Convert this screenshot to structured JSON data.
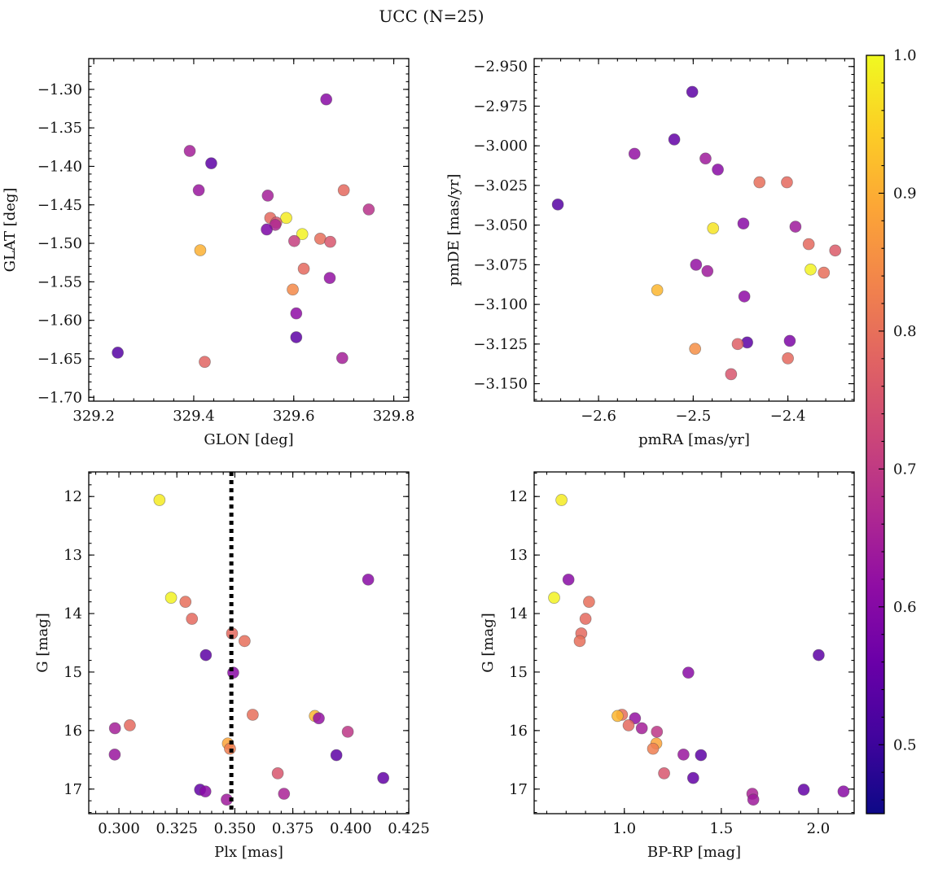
{
  "figure": {
    "title": "UCC (N=25)"
  },
  "colorbar": {
    "range": [
      0.45,
      1.0
    ],
    "ticks": [
      0.5,
      0.6,
      0.7,
      0.8,
      0.9,
      1.0
    ],
    "tick_labels": [
      "0.5",
      "0.6",
      "0.7",
      "0.8",
      "0.9",
      "1.0"
    ],
    "colormap": "plasma"
  },
  "chart_data": [
    {
      "id": "glon_glat",
      "type": "scatter",
      "xlabel": "GLON [deg]",
      "ylabel": "GLAT [deg]",
      "xlim": [
        329.19,
        329.83
      ],
      "ylim": [
        -1.705,
        -1.26
      ],
      "y_inverted": false,
      "xticks": [
        329.2,
        329.4,
        329.6,
        329.8
      ],
      "xtick_labels": [
        "329.2",
        "329.4",
        "329.6",
        "329.8"
      ],
      "yticks": [
        -1.3,
        -1.35,
        -1.4,
        -1.45,
        -1.5,
        -1.55,
        -1.6,
        -1.65,
        -1.7
      ],
      "ytick_labels": [
        "−1.30",
        "−1.35",
        "−1.40",
        "−1.45",
        "−1.50",
        "−1.55",
        "−1.60",
        "−1.65",
        "−1.70"
      ],
      "points": [
        {
          "x": 329.665,
          "y": -1.313,
          "c": 0.55
        },
        {
          "x": 329.392,
          "y": -1.38,
          "c": 0.6
        },
        {
          "x": 329.435,
          "y": -1.396,
          "c": 0.48
        },
        {
          "x": 329.41,
          "y": -1.431,
          "c": 0.58
        },
        {
          "x": 329.548,
          "y": -1.438,
          "c": 0.6
        },
        {
          "x": 329.7,
          "y": -1.431,
          "c": 0.76
        },
        {
          "x": 329.75,
          "y": -1.456,
          "c": 0.64
        },
        {
          "x": 329.553,
          "y": -1.467,
          "c": 0.76
        },
        {
          "x": 329.585,
          "y": -1.467,
          "c": 0.98
        },
        {
          "x": 329.565,
          "y": -1.473,
          "c": 0.72
        },
        {
          "x": 329.563,
          "y": -1.476,
          "c": 0.62
        },
        {
          "x": 329.546,
          "y": -1.482,
          "c": 0.53
        },
        {
          "x": 329.617,
          "y": -1.488,
          "c": 0.99
        },
        {
          "x": 329.653,
          "y": -1.494,
          "c": 0.77
        },
        {
          "x": 329.601,
          "y": -1.497,
          "c": 0.67
        },
        {
          "x": 329.673,
          "y": -1.498,
          "c": 0.72
        },
        {
          "x": 329.413,
          "y": -1.509,
          "c": 0.89
        },
        {
          "x": 329.62,
          "y": -1.533,
          "c": 0.76
        },
        {
          "x": 329.672,
          "y": -1.545,
          "c": 0.57
        },
        {
          "x": 329.598,
          "y": -1.56,
          "c": 0.82
        },
        {
          "x": 329.605,
          "y": -1.591,
          "c": 0.56
        },
        {
          "x": 329.605,
          "y": -1.622,
          "c": 0.48
        },
        {
          "x": 329.248,
          "y": -1.642,
          "c": 0.47
        },
        {
          "x": 329.697,
          "y": -1.649,
          "c": 0.6
        },
        {
          "x": 329.422,
          "y": -1.654,
          "c": 0.75
        }
      ]
    },
    {
      "id": "pmra_pmde",
      "type": "scatter",
      "xlabel": "pmRA [mas/yr]",
      "ylabel": "pmDE [mas/yr]",
      "xlim": [
        -2.668,
        -2.33
      ],
      "ylim": [
        -3.161,
        -2.945
      ],
      "y_inverted": false,
      "xticks": [
        -2.6,
        -2.5,
        -2.4
      ],
      "xtick_labels": [
        "−2.6",
        "−2.5",
        "−2.4"
      ],
      "yticks": [
        -2.95,
        -2.975,
        -3.0,
        -3.025,
        -3.05,
        -3.075,
        -3.1,
        -3.125,
        -3.15
      ],
      "ytick_labels": [
        "−2.950",
        "−2.975",
        "−3.000",
        "−3.025",
        "−3.050",
        "−3.075",
        "−3.100",
        "−3.125",
        "−3.150"
      ],
      "points": [
        {
          "x": -2.501,
          "y": -2.966,
          "c": 0.48
        },
        {
          "x": -2.52,
          "y": -2.996,
          "c": 0.49
        },
        {
          "x": -2.562,
          "y": -3.005,
          "c": 0.57
        },
        {
          "x": -2.487,
          "y": -3.008,
          "c": 0.59
        },
        {
          "x": -2.474,
          "y": -3.015,
          "c": 0.55
        },
        {
          "x": -2.43,
          "y": -3.023,
          "c": 0.77
        },
        {
          "x": -2.401,
          "y": -3.023,
          "c": 0.76
        },
        {
          "x": -2.643,
          "y": -3.037,
          "c": 0.47
        },
        {
          "x": -2.447,
          "y": -3.049,
          "c": 0.55
        },
        {
          "x": -2.392,
          "y": -3.051,
          "c": 0.59
        },
        {
          "x": -2.479,
          "y": -3.052,
          "c": 0.97
        },
        {
          "x": -2.378,
          "y": -3.062,
          "c": 0.76
        },
        {
          "x": -2.35,
          "y": -3.066,
          "c": 0.73
        },
        {
          "x": -2.497,
          "y": -3.075,
          "c": 0.57
        },
        {
          "x": -2.376,
          "y": -3.078,
          "c": 0.99
        },
        {
          "x": -2.485,
          "y": -3.079,
          "c": 0.59
        },
        {
          "x": -2.362,
          "y": -3.08,
          "c": 0.77
        },
        {
          "x": -2.538,
          "y": -3.091,
          "c": 0.9
        },
        {
          "x": -2.446,
          "y": -3.095,
          "c": 0.56
        },
        {
          "x": -2.398,
          "y": -3.123,
          "c": 0.53
        },
        {
          "x": -2.443,
          "y": -3.124,
          "c": 0.48
        },
        {
          "x": -2.453,
          "y": -3.125,
          "c": 0.74
        },
        {
          "x": -2.498,
          "y": -3.128,
          "c": 0.83
        },
        {
          "x": -2.4,
          "y": -3.134,
          "c": 0.76
        },
        {
          "x": -2.46,
          "y": -3.144,
          "c": 0.72
        }
      ]
    },
    {
      "id": "plx_g",
      "type": "scatter",
      "xlabel": "Plx [mas]",
      "ylabel": "G [mag]",
      "xlim": [
        0.287,
        0.425
      ],
      "ylim": [
        11.58,
        17.42
      ],
      "y_inverted": true,
      "xticks": [
        0.3,
        0.325,
        0.35,
        0.375,
        0.4,
        0.425
      ],
      "xtick_labels": [
        "0.300",
        "0.325",
        "0.350",
        "0.375",
        "0.400",
        "0.425"
      ],
      "yticks": [
        12,
        13,
        14,
        15,
        16,
        17
      ],
      "ytick_labels": [
        "12",
        "13",
        "14",
        "15",
        "16",
        "17"
      ],
      "vline": {
        "x": 0.3485
      },
      "points": [
        {
          "x": 0.3175,
          "y": 12.06,
          "c": 0.98
        },
        {
          "x": 0.4075,
          "y": 13.42,
          "c": 0.55
        },
        {
          "x": 0.3225,
          "y": 13.73,
          "c": 0.99
        },
        {
          "x": 0.3287,
          "y": 13.8,
          "c": 0.77
        },
        {
          "x": 0.3315,
          "y": 14.09,
          "c": 0.76
        },
        {
          "x": 0.3488,
          "y": 14.34,
          "c": 0.76
        },
        {
          "x": 0.3542,
          "y": 14.47,
          "c": 0.77
        },
        {
          "x": 0.3375,
          "y": 14.71,
          "c": 0.48
        },
        {
          "x": 0.3493,
          "y": 15.01,
          "c": 0.55
        },
        {
          "x": 0.3577,
          "y": 15.73,
          "c": 0.77
        },
        {
          "x": 0.3845,
          "y": 15.75,
          "c": 0.9
        },
        {
          "x": 0.3862,
          "y": 15.79,
          "c": 0.57
        },
        {
          "x": 0.3047,
          "y": 15.91,
          "c": 0.76
        },
        {
          "x": 0.2983,
          "y": 15.96,
          "c": 0.6
        },
        {
          "x": 0.3987,
          "y": 16.02,
          "c": 0.65
        },
        {
          "x": 0.347,
          "y": 16.22,
          "c": 0.87
        },
        {
          "x": 0.3479,
          "y": 16.31,
          "c": 0.8
        },
        {
          "x": 0.2982,
          "y": 16.41,
          "c": 0.58
        },
        {
          "x": 0.3938,
          "y": 16.42,
          "c": 0.48
        },
        {
          "x": 0.3685,
          "y": 16.73,
          "c": 0.72
        },
        {
          "x": 0.414,
          "y": 16.81,
          "c": 0.49
        },
        {
          "x": 0.335,
          "y": 17.01,
          "c": 0.49
        },
        {
          "x": 0.3373,
          "y": 17.04,
          "c": 0.55
        },
        {
          "x": 0.3712,
          "y": 17.08,
          "c": 0.61
        },
        {
          "x": 0.3465,
          "y": 17.18,
          "c": 0.59
        }
      ]
    },
    {
      "id": "bprp_g",
      "type": "scatter",
      "xlabel": "BP-RP [mag]",
      "ylabel": "G [mag]",
      "xlim": [
        0.535,
        2.185
      ],
      "ylim": [
        11.58,
        17.42
      ],
      "y_inverted": true,
      "xticks": [
        1.0,
        1.5,
        2.0
      ],
      "xtick_labels": [
        "1.0",
        "1.5",
        "2.0"
      ],
      "yticks": [
        12,
        13,
        14,
        15,
        16,
        17
      ],
      "ytick_labels": [
        "12",
        "13",
        "14",
        "15",
        "16",
        "17"
      ],
      "points": [
        {
          "x": 0.676,
          "y": 12.06,
          "c": 0.98
        },
        {
          "x": 0.712,
          "y": 13.42,
          "c": 0.55
        },
        {
          "x": 0.638,
          "y": 13.73,
          "c": 0.99
        },
        {
          "x": 0.818,
          "y": 13.8,
          "c": 0.77
        },
        {
          "x": 0.8,
          "y": 14.09,
          "c": 0.76
        },
        {
          "x": 0.778,
          "y": 14.34,
          "c": 0.76
        },
        {
          "x": 0.77,
          "y": 14.47,
          "c": 0.77
        },
        {
          "x": 2.002,
          "y": 14.71,
          "c": 0.48
        },
        {
          "x": 1.33,
          "y": 15.01,
          "c": 0.55
        },
        {
          "x": 0.988,
          "y": 15.73,
          "c": 0.77
        },
        {
          "x": 0.965,
          "y": 15.75,
          "c": 0.9
        },
        {
          "x": 1.055,
          "y": 15.79,
          "c": 0.57
        },
        {
          "x": 1.022,
          "y": 15.91,
          "c": 0.76
        },
        {
          "x": 1.09,
          "y": 15.96,
          "c": 0.6
        },
        {
          "x": 1.168,
          "y": 16.02,
          "c": 0.65
        },
        {
          "x": 1.165,
          "y": 16.22,
          "c": 0.87
        },
        {
          "x": 1.148,
          "y": 16.31,
          "c": 0.8
        },
        {
          "x": 1.305,
          "y": 16.41,
          "c": 0.58
        },
        {
          "x": 1.395,
          "y": 16.42,
          "c": 0.48
        },
        {
          "x": 1.205,
          "y": 16.73,
          "c": 0.72
        },
        {
          "x": 1.355,
          "y": 16.81,
          "c": 0.49
        },
        {
          "x": 1.925,
          "y": 17.01,
          "c": 0.49
        },
        {
          "x": 2.13,
          "y": 17.04,
          "c": 0.55
        },
        {
          "x": 1.66,
          "y": 17.08,
          "c": 0.61
        },
        {
          "x": 1.665,
          "y": 17.18,
          "c": 0.59
        }
      ]
    }
  ]
}
